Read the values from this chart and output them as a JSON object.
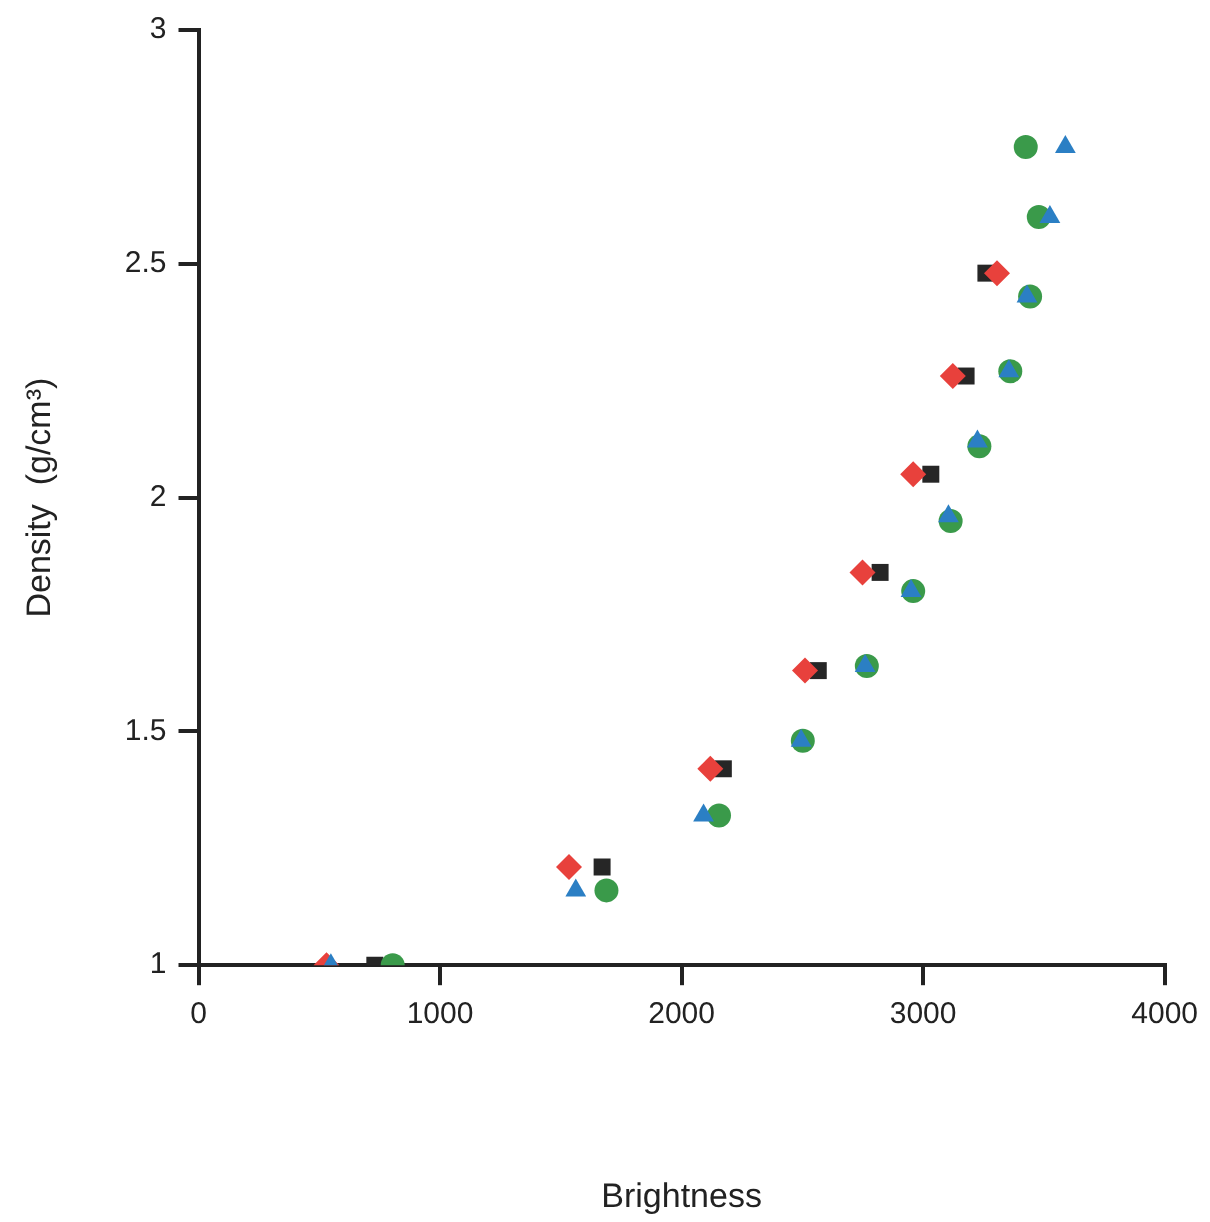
{
  "chart_data": {
    "type": "scatter",
    "xlabel": "Brightness",
    "ylabel": "Density  (g/cm³)",
    "xlim": [
      0,
      4000
    ],
    "xticks": [
      0,
      1000,
      2000,
      3000,
      4000
    ],
    "ylim": [
      1,
      3
    ],
    "yticks": [
      1,
      1.5,
      2,
      2.5,
      3
    ],
    "grid": false,
    "legend": false,
    "series": [
      {
        "color": "#2b7fc4",
        "marker": "triangle",
        "x": [
          548,
          1562,
          2091,
          2495,
          2760,
          2950,
          3105,
          3225,
          3355,
          3430,
          3525,
          3589
        ],
        "values": [
          1.0,
          1.16,
          1.32,
          1.48,
          1.64,
          1.8,
          1.96,
          2.12,
          2.27,
          2.43,
          2.6,
          2.75
        ]
      },
      {
        "color": "#3a9a4a",
        "marker": "circle",
        "x": [
          804,
          1689,
          2155,
          2502,
          2767,
          2959,
          3114,
          3233,
          3361,
          3443,
          3479,
          3425
        ],
        "values": [
          1.0,
          1.16,
          1.32,
          1.48,
          1.64,
          1.8,
          1.95,
          2.11,
          2.27,
          2.43,
          2.6,
          2.75
        ]
      },
      {
        "color": "#e8413c",
        "marker": "diamond",
        "x": [
          530,
          1534,
          2119,
          2511,
          2749,
          2959,
          3123,
          3306
        ],
        "values": [
          1.0,
          1.21,
          1.42,
          1.63,
          1.84,
          2.05,
          2.26,
          2.48
        ]
      },
      {
        "color": "#262626",
        "marker": "square",
        "x": [
          730,
          1671,
          2173,
          2566,
          2822,
          3032,
          3178,
          3260
        ],
        "values": [
          1.0,
          1.21,
          1.42,
          1.63,
          1.84,
          2.05,
          2.26,
          2.48
        ]
      }
    ]
  }
}
